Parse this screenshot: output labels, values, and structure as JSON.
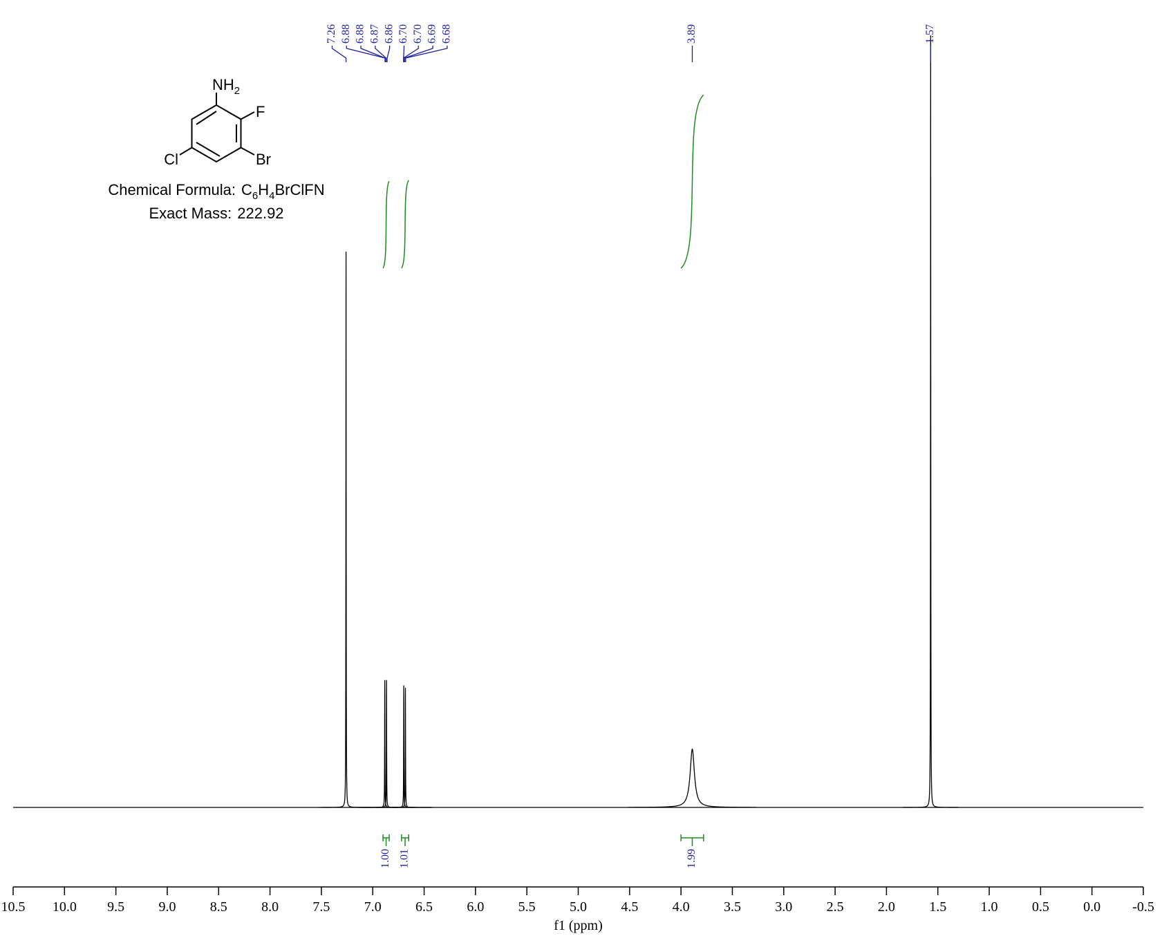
{
  "chart_data": {
    "type": "nmr",
    "x_label": "f1 (ppm)",
    "xlim": [
      10.5,
      -0.5
    ],
    "xticks": [
      {
        "value": 10.5,
        "label": "10.5"
      },
      {
        "value": 10,
        "label": "10.0"
      },
      9.5,
      {
        "value": 9,
        "label": "9.0"
      },
      8.5,
      {
        "value": 8,
        "label": "8.0"
      },
      7.5,
      {
        "value": 7,
        "label": "7.0"
      },
      6.5,
      {
        "value": 6,
        "label": "6.0"
      },
      5.5,
      {
        "value": 5,
        "label": "5.0"
      },
      4.5,
      {
        "value": 4,
        "label": "4.0"
      },
      3.5,
      {
        "value": 3,
        "label": "3.0"
      },
      2.5,
      {
        "value": 2,
        "label": "2.0"
      },
      1.5,
      {
        "value": 1,
        "label": "1.0"
      },
      0.5,
      {
        "value": 0,
        "label": "0.0"
      },
      -0.5
    ],
    "ylim": [
      0,
      1
    ],
    "peaks": [
      {
        "ppm": 7.26,
        "intensity": 0.72,
        "linewidth": 0.0015
      },
      {
        "ppm": 6.883,
        "intensity": 0.165,
        "linewidth": 0.0015
      },
      {
        "ppm": 6.866,
        "intensity": 0.165,
        "linewidth": 0.0015
      },
      {
        "ppm": 6.698,
        "intensity": 0.158,
        "linewidth": 0.0015
      },
      {
        "ppm": 6.682,
        "intensity": 0.155,
        "linewidth": 0.0015
      },
      {
        "ppm": 3.89,
        "intensity": 0.075,
        "linewidth": 0.025
      },
      {
        "ppm": 1.57,
        "intensity": 1.0,
        "linewidth": 0.0015
      }
    ],
    "peak_labels": [
      7.26,
      6.88,
      6.88,
      6.87,
      6.86,
      {
        "value": 6.7,
        "label": "6.70"
      },
      {
        "value": 6.7,
        "label": "6.70"
      },
      6.69,
      6.68,
      3.89,
      1.57
    ],
    "integrals": [
      {
        "range": [
          6.9,
          6.84
        ],
        "value": 1,
        "label": "1.00"
      },
      {
        "range": [
          6.72,
          6.65
        ],
        "value": 1.01
      },
      {
        "range": [
          4.0,
          3.78
        ],
        "value": 1.99
      }
    ],
    "colors": {
      "spectrum": "#000000",
      "labels": "#1f1f9c",
      "integrals": "#1d8c1d"
    }
  },
  "structure": {
    "amine": "NH",
    "amine_subscript": "2",
    "fluoro": "F",
    "bromo": "Br",
    "chloro": "Cl"
  },
  "formula": {
    "label": "Chemical Formula:",
    "parts": [
      "C",
      "6",
      "H",
      "4",
      "BrClFN"
    ]
  },
  "mass": {
    "label": "Exact Mass:",
    "value": 222.92
  }
}
